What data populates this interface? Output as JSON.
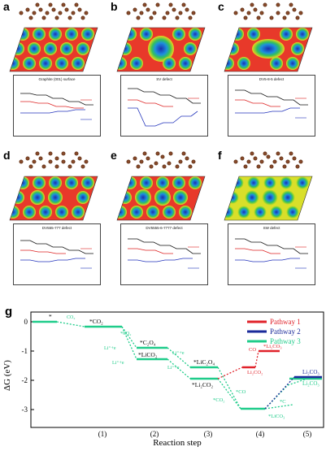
{
  "panels": [
    {
      "label": "a",
      "title": "Graphite (001) surface"
    },
    {
      "label": "b",
      "title": "SV defect"
    },
    {
      "label": "c",
      "title": "DV5-8-5 defect"
    },
    {
      "label": "d",
      "title": "DV555-777 defect"
    },
    {
      "label": "e",
      "title": "DV5555-6-7777 defect"
    },
    {
      "label": "f",
      "title": "SW defect"
    }
  ],
  "energy_axis": {
    "xlabel": "Reaction coordinates",
    "ylabel": "Energy (eV)"
  },
  "panel_g": {
    "label": "g",
    "xlabel": "Reaction step",
    "ylabel": "ΔG (eV)",
    "yticks": [
      "0",
      "-1",
      "-2",
      "-3"
    ],
    "xticks": [
      "(1)",
      "(2)",
      "(3)",
      "(4)",
      "(5)"
    ],
    "legend": [
      {
        "name": "Pathway 1",
        "color": "#e0222a"
      },
      {
        "name": "Pathway 2",
        "color": "#1a2a9a"
      },
      {
        "name": "Pathway 3",
        "color": "#1fcc8a"
      }
    ],
    "annotations": {
      "star": "*",
      "co2_a": "CO₂",
      "co2_ads": "*CO₂",
      "co2_b": "*CO₂",
      "c2o4": "*C₂O₄",
      "li_e1": "Li⁺+e",
      "li_e2": "Li⁺+e",
      "li_e3": "Li⁺+e",
      "li_e4": "Li⁺+e",
      "lico2": "*LiCO₂",
      "lic2o4": "*LiC₂O₄",
      "li2co2": "*Li₂CO₂",
      "co_p1": "CO",
      "li2co3_star": "*Li₂CO₃",
      "li2co2_r": "Li₂CO₂",
      "co2_c": "*CO₂",
      "co_c": "*CO",
      "li2co3_r1": "Li₂CO₃",
      "li2co3_r2": "Li₂CO₃",
      "c_star": "*C",
      "lic2co3": "*LiCO₃"
    }
  }
}
